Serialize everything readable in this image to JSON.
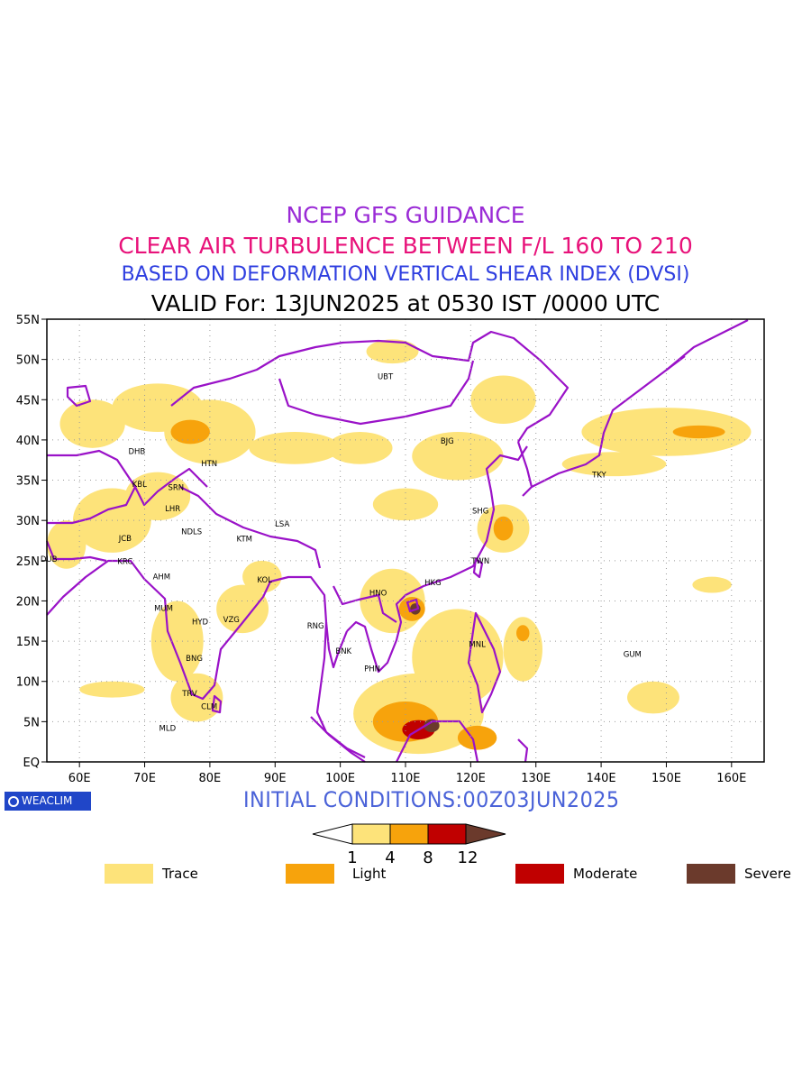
{
  "titles": {
    "line1": "NCEP GFS GUIDANCE",
    "line2": "CLEAR AIR TURBULENCE BETWEEN F/L 160 TO 210",
    "line3": "BASED ON DEFORMATION VERTICAL SHEAR INDEX (DVSI)",
    "line4": "VALID For: 13JUN2025 at 0530 IST /0000 UTC"
  },
  "colors": {
    "trace": "#fde37a",
    "light": "#f7a30c",
    "moderate": "#c00000",
    "severe": "#6b3a2c",
    "border": "#9a12c8",
    "grid": "#9a9a9a"
  },
  "map": {
    "lon_range": [
      55,
      165
    ],
    "lat_range": [
      0,
      55
    ],
    "lon_ticks": [
      "60E",
      "70E",
      "80E",
      "90E",
      "100E",
      "110E",
      "120E",
      "130E",
      "140E",
      "150E",
      "160E"
    ],
    "lat_ticks": [
      "EQ",
      "5N",
      "10N",
      "15N",
      "20N",
      "25N",
      "30N",
      "35N",
      "40N",
      "45N",
      "50N",
      "55N"
    ],
    "stations": [
      {
        "code": "UBT",
        "lon": 106.9,
        "lat": 47.9
      },
      {
        "code": "BJG",
        "lon": 116.4,
        "lat": 39.9
      },
      {
        "code": "DHB",
        "lon": 68.8,
        "lat": 38.6
      },
      {
        "code": "HTN",
        "lon": 79.9,
        "lat": 37.1
      },
      {
        "code": "TKY",
        "lon": 139.7,
        "lat": 35.7
      },
      {
        "code": "KBL",
        "lon": 69.2,
        "lat": 34.5
      },
      {
        "code": "SRN",
        "lon": 74.8,
        "lat": 34.1
      },
      {
        "code": "LHR",
        "lon": 74.3,
        "lat": 31.5
      },
      {
        "code": "SHG",
        "lon": 121.5,
        "lat": 31.2
      },
      {
        "code": "LSA",
        "lon": 91.1,
        "lat": 29.6
      },
      {
        "code": "JCB",
        "lon": 67.0,
        "lat": 27.8
      },
      {
        "code": "NDLS",
        "lon": 77.2,
        "lat": 28.6
      },
      {
        "code": "KTM",
        "lon": 85.3,
        "lat": 27.7
      },
      {
        "code": "DUB",
        "lon": 55.3,
        "lat": 25.2
      },
      {
        "code": "TWN",
        "lon": 121.5,
        "lat": 25.0
      },
      {
        "code": "KRC",
        "lon": 67.0,
        "lat": 24.9
      },
      {
        "code": "AHM",
        "lon": 72.6,
        "lat": 23.0
      },
      {
        "code": "KOL",
        "lon": 88.4,
        "lat": 22.6
      },
      {
        "code": "HKG",
        "lon": 114.2,
        "lat": 22.3
      },
      {
        "code": "HNO",
        "lon": 105.8,
        "lat": 21.0
      },
      {
        "code": "MUM",
        "lon": 72.9,
        "lat": 19.1
      },
      {
        "code": "HYD",
        "lon": 78.5,
        "lat": 17.4
      },
      {
        "code": "VZG",
        "lon": 83.3,
        "lat": 17.7
      },
      {
        "code": "RNG",
        "lon": 96.2,
        "lat": 16.9
      },
      {
        "code": "GUM",
        "lon": 144.8,
        "lat": 13.4
      },
      {
        "code": "MNL",
        "lon": 121.0,
        "lat": 14.6
      },
      {
        "code": "BNK",
        "lon": 100.5,
        "lat": 13.8
      },
      {
        "code": "BNG",
        "lon": 77.6,
        "lat": 12.9
      },
      {
        "code": "PHN",
        "lon": 104.9,
        "lat": 11.6
      },
      {
        "code": "TRV",
        "lon": 76.9,
        "lat": 8.5
      },
      {
        "code": "CLM",
        "lon": 79.9,
        "lat": 6.9
      },
      {
        "code": "MLD",
        "lon": 73.5,
        "lat": 4.2
      }
    ]
  },
  "turbulence_areas": [
    {
      "level": "trace",
      "lon": 62,
      "lat": 42,
      "rx": 5,
      "ry": 3
    },
    {
      "level": "trace",
      "lon": 72,
      "lat": 44,
      "rx": 7,
      "ry": 3
    },
    {
      "level": "trace",
      "lon": 80,
      "lat": 41,
      "rx": 7,
      "ry": 4
    },
    {
      "level": "light",
      "lon": 77,
      "lat": 41,
      "rx": 3,
      "ry": 1.5
    },
    {
      "level": "trace",
      "lon": 65,
      "lat": 30,
      "rx": 6,
      "ry": 4
    },
    {
      "level": "trace",
      "lon": 58,
      "lat": 27,
      "rx": 3,
      "ry": 3
    },
    {
      "level": "trace",
      "lon": 72,
      "lat": 33,
      "rx": 5,
      "ry": 3
    },
    {
      "level": "trace",
      "lon": 93,
      "lat": 39,
      "rx": 7,
      "ry": 2
    },
    {
      "level": "trace",
      "lon": 103,
      "lat": 39,
      "rx": 5,
      "ry": 2
    },
    {
      "level": "trace",
      "lon": 118,
      "lat": 38,
      "rx": 7,
      "ry": 3
    },
    {
      "level": "trace",
      "lon": 125,
      "lat": 45,
      "rx": 5,
      "ry": 3
    },
    {
      "level": "trace",
      "lon": 108,
      "lat": 51,
      "rx": 4,
      "ry": 1.5
    },
    {
      "level": "trace",
      "lon": 150,
      "lat": 41,
      "rx": 13,
      "ry": 3
    },
    {
      "level": "light",
      "lon": 155,
      "lat": 41,
      "rx": 4,
      "ry": 0.8
    },
    {
      "level": "trace",
      "lon": 142,
      "lat": 37,
      "rx": 8,
      "ry": 1.5
    },
    {
      "level": "trace",
      "lon": 110,
      "lat": 32,
      "rx": 5,
      "ry": 2
    },
    {
      "level": "trace",
      "lon": 125,
      "lat": 29,
      "rx": 4,
      "ry": 3
    },
    {
      "level": "light",
      "lon": 125,
      "lat": 29,
      "rx": 1.5,
      "ry": 1.5
    },
    {
      "level": "trace",
      "lon": 88,
      "lat": 23,
      "rx": 3,
      "ry": 2
    },
    {
      "level": "trace",
      "lon": 85,
      "lat": 19,
      "rx": 4,
      "ry": 3
    },
    {
      "level": "trace",
      "lon": 75,
      "lat": 15,
      "rx": 4,
      "ry": 5
    },
    {
      "level": "trace",
      "lon": 78,
      "lat": 8,
      "rx": 4,
      "ry": 3
    },
    {
      "level": "trace",
      "lon": 65,
      "lat": 9,
      "rx": 5,
      "ry": 1
    },
    {
      "level": "trace",
      "lon": 108,
      "lat": 20,
      "rx": 5,
      "ry": 4
    },
    {
      "level": "light",
      "lon": 111,
      "lat": 19,
      "rx": 2,
      "ry": 1.5
    },
    {
      "level": "severe",
      "lon": 111.5,
      "lat": 19,
      "rx": 0.8,
      "ry": 0.7
    },
    {
      "level": "trace",
      "lon": 118,
      "lat": 13,
      "rx": 7,
      "ry": 6
    },
    {
      "level": "trace",
      "lon": 112,
      "lat": 6,
      "rx": 10,
      "ry": 5
    },
    {
      "level": "light",
      "lon": 110,
      "lat": 5,
      "rx": 5,
      "ry": 2.5
    },
    {
      "level": "moderate",
      "lon": 112,
      "lat": 4,
      "rx": 2.5,
      "ry": 1.2
    },
    {
      "level": "severe",
      "lon": 114,
      "lat": 4.5,
      "rx": 1.2,
      "ry": 0.8
    },
    {
      "level": "light",
      "lon": 121,
      "lat": 3,
      "rx": 3,
      "ry": 1.5
    },
    {
      "level": "trace",
      "lon": 128,
      "lat": 14,
      "rx": 3,
      "ry": 4
    },
    {
      "level": "light",
      "lon": 128,
      "lat": 16,
      "rx": 1,
      "ry": 1
    },
    {
      "level": "trace",
      "lon": 148,
      "lat": 8,
      "rx": 4,
      "ry": 2
    },
    {
      "level": "trace",
      "lon": 157,
      "lat": 22,
      "rx": 3,
      "ry": 1
    }
  ],
  "initial_conditions": "INITIAL CONDITIONS:00Z03JUN2025",
  "logo": "WEACLIM",
  "colorbar": {
    "ticks": [
      "1",
      "4",
      "8",
      "12"
    ]
  },
  "legend": [
    {
      "label": "Trace",
      "color": "#fde37a"
    },
    {
      "label": "Light",
      "color": "#f7a30c"
    },
    {
      "label": "Moderate",
      "color": "#c00000"
    },
    {
      "label": "Severe",
      "color": "#6b3a2c"
    }
  ]
}
